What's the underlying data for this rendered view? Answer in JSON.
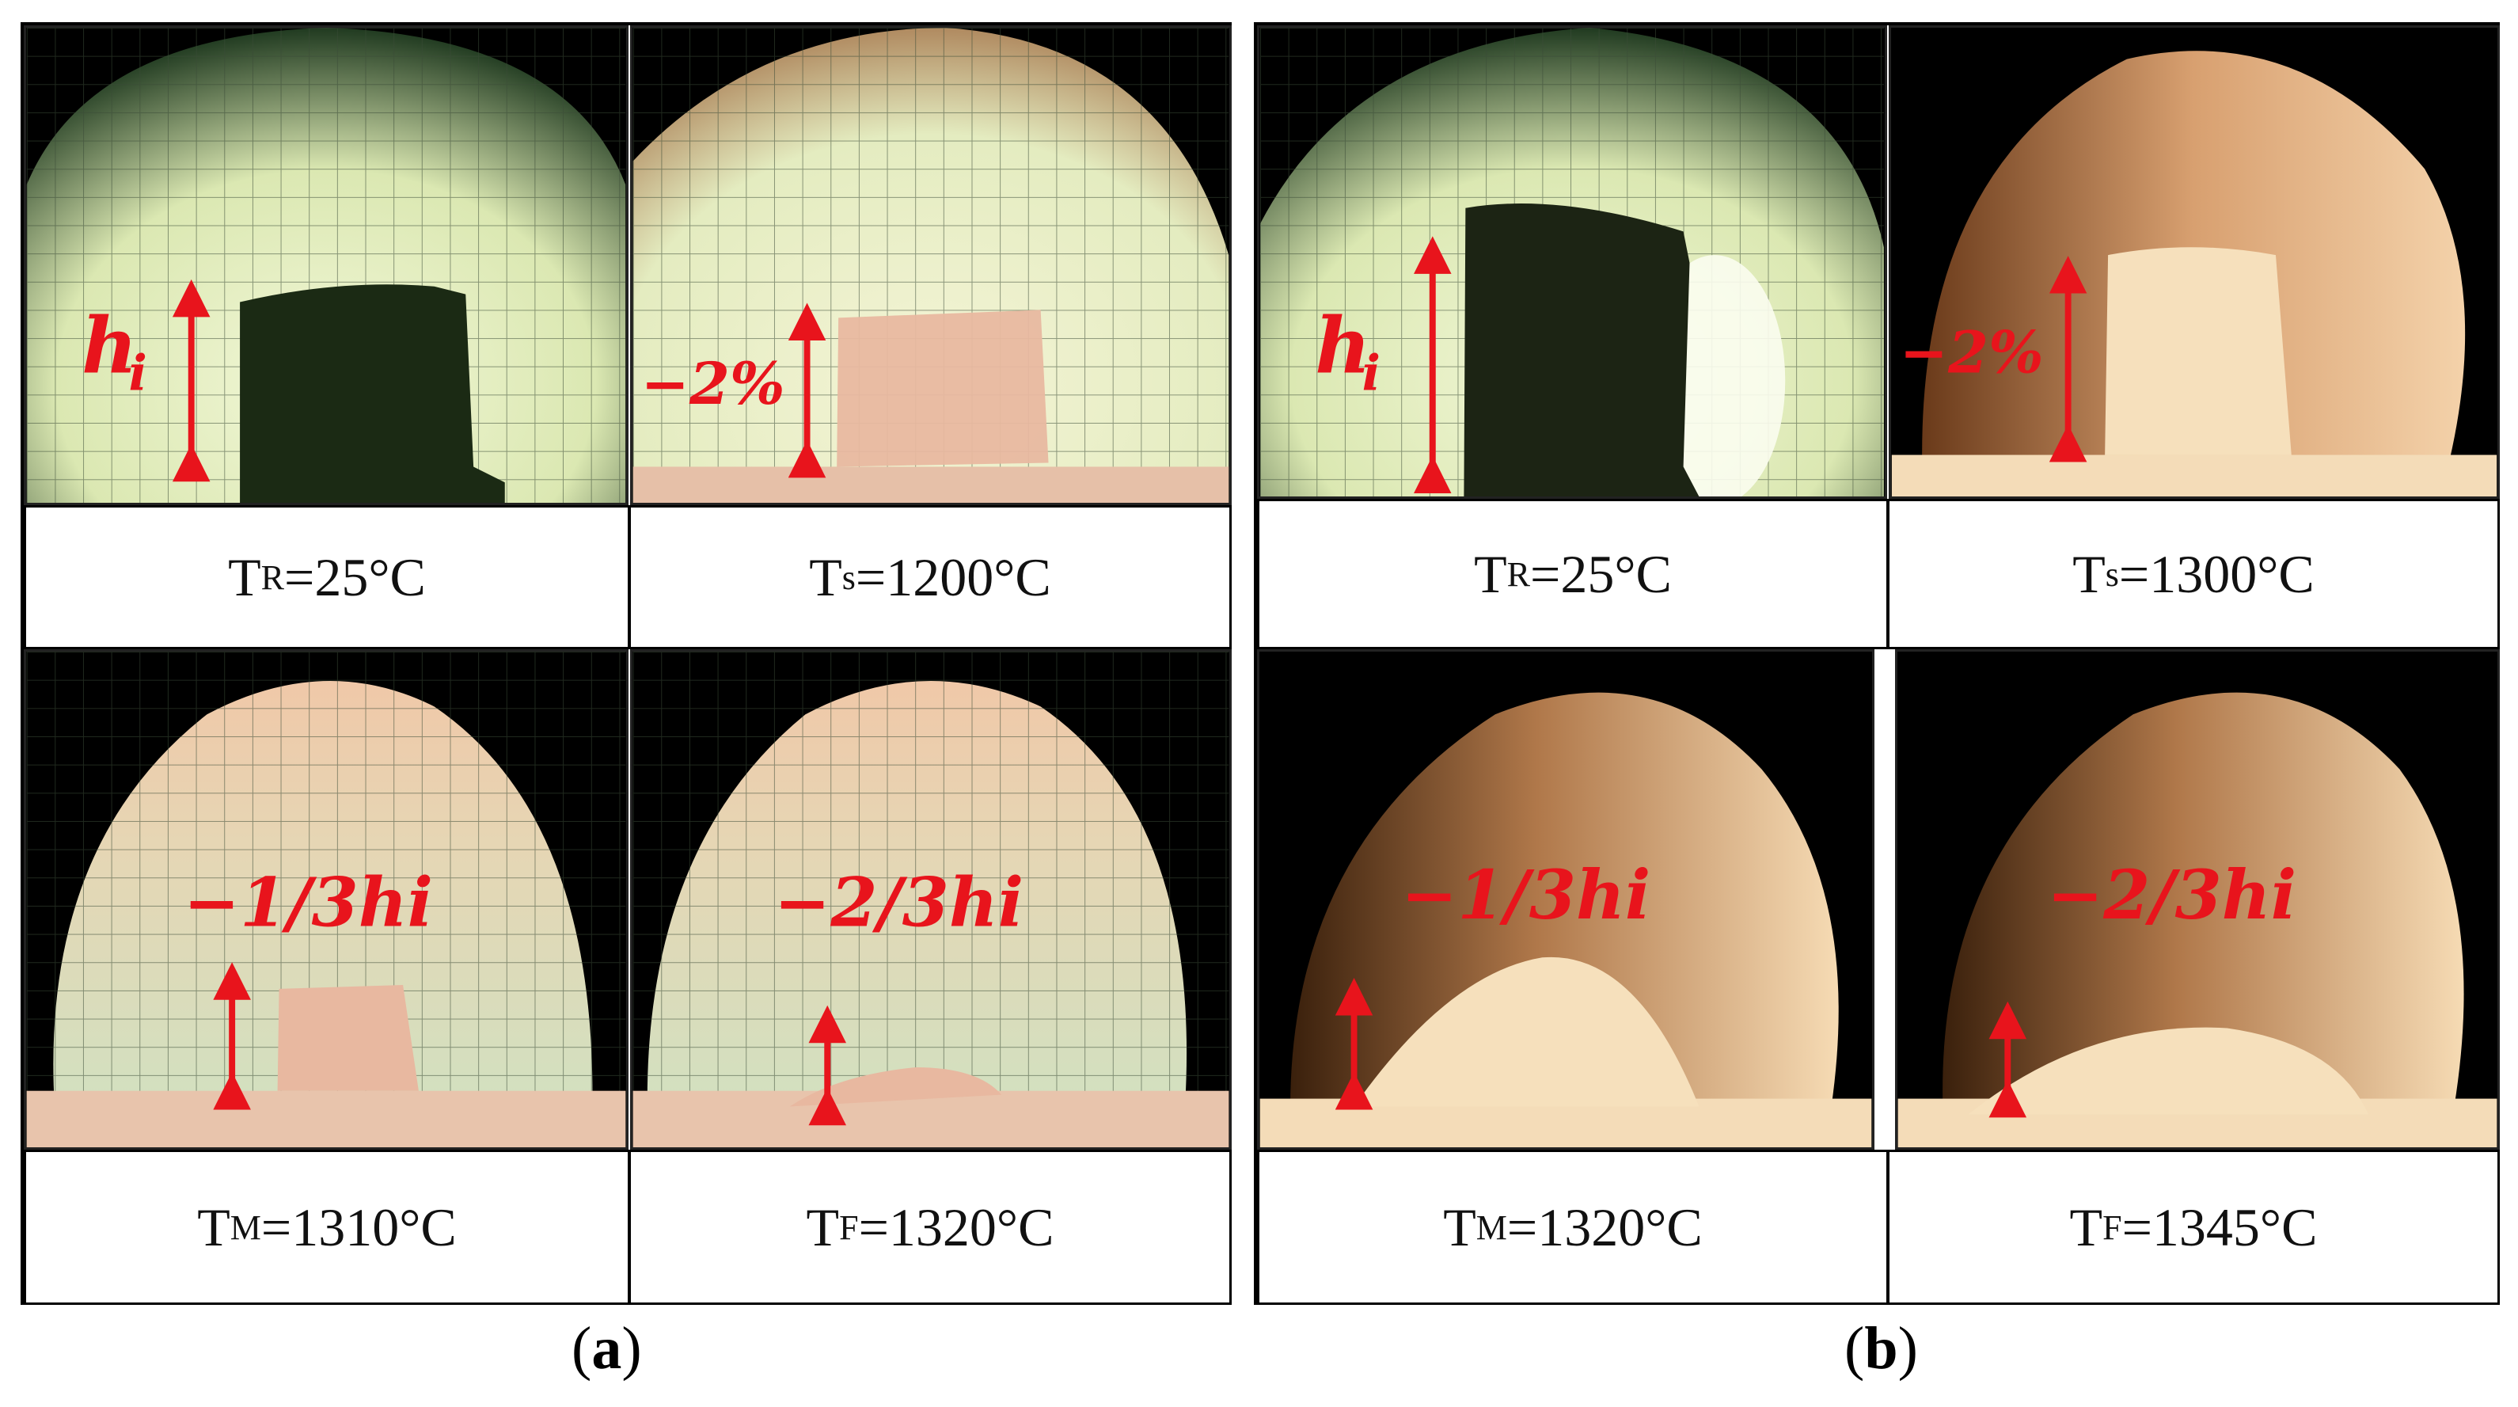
{
  "panels": [
    {
      "caption": "a",
      "cells": [
        {
          "label_main": "T",
          "label_sub": "R",
          "label_value": "=25°C",
          "annotation": "hi",
          "scene": "cold-a"
        },
        {
          "label_main": "T",
          "label_sub": "s",
          "label_value": "=1200°C",
          "annotation": "−2%",
          "scene": "warm-a"
        },
        {
          "label_main": "T",
          "label_sub": "M",
          "label_value": "=1310°C",
          "annotation": "−1/3hi",
          "scene": "mid-a"
        },
        {
          "label_main": "T",
          "label_sub": "F",
          "label_value": "=1320°C",
          "annotation": "−2/3hi",
          "scene": "flow-a"
        }
      ]
    },
    {
      "caption": "b",
      "cells": [
        {
          "label_main": "T",
          "label_sub": "R",
          "label_value": "=25°C",
          "annotation": "hi",
          "scene": "cold-b"
        },
        {
          "label_main": "T",
          "label_sub": "s",
          "label_value": "=1300°C",
          "annotation": "−2%",
          "scene": "warm-b"
        },
        {
          "label_main": "T",
          "label_sub": "M",
          "label_value": "=1320°C",
          "annotation": "−1/3hi",
          "scene": "mid-b"
        },
        {
          "label_main": "T",
          "label_sub": "F",
          "label_value": "=1345°C",
          "annotation": "−2/3hi",
          "scene": "flow-b"
        }
      ]
    }
  ],
  "colors": {
    "annotation": "#e8141c",
    "grid_light": "#e6f0c8",
    "hot_bg": "#f2d8b4",
    "sample_a": "#e8b8a0",
    "sample_b": "#f4dcb8"
  }
}
